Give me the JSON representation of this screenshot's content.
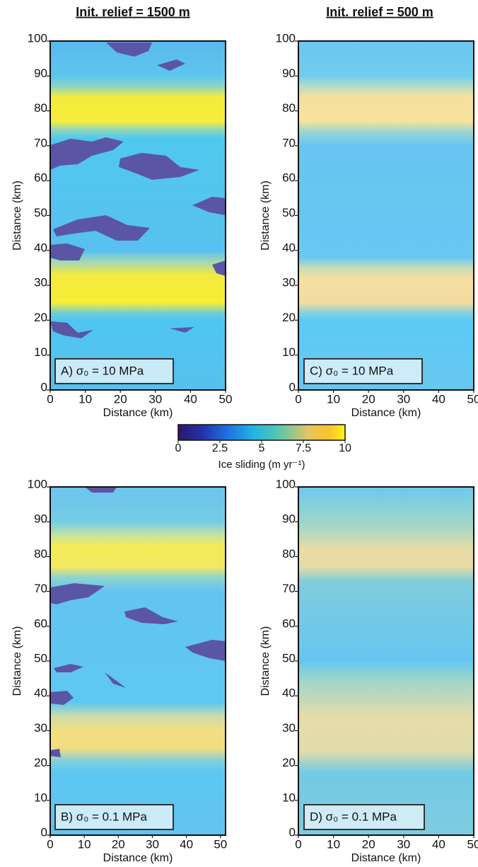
{
  "column_titles": [
    "Init. relief = 1500 m",
    "Init. relief = 500 m"
  ],
  "chart_data": [
    {
      "type": "heatmap",
      "label": "A) σ₀ = 10 MPa",
      "xlabel": "Distance (km)",
      "ylabel": "Distance (km)",
      "xlim": [
        0,
        50
      ],
      "ylim": [
        0,
        100
      ],
      "xticks": [
        0,
        10,
        20,
        30,
        40,
        50
      ],
      "yticks": [
        0,
        10,
        20,
        30,
        40,
        50,
        60,
        70,
        80,
        90,
        100
      ]
    },
    {
      "type": "heatmap",
      "label": "B) σ₀ = 0.1 MPa",
      "xlabel": "Distance (km)",
      "ylabel": "Distance (km)",
      "xlim": [
        0,
        51.5
      ],
      "ylim": [
        0,
        100
      ],
      "xticks": [
        0,
        10,
        20,
        30,
        40,
        50
      ],
      "yticks": [
        0,
        10,
        20,
        30,
        40,
        50,
        60,
        70,
        80,
        90,
        100
      ]
    },
    {
      "type": "heatmap",
      "label": "C) σ₀ = 10 MPa",
      "xlabel": "Distance (km)",
      "ylabel": "Distance (km)",
      "xlim": [
        0,
        50
      ],
      "ylim": [
        0,
        100
      ],
      "xticks": [
        0,
        10,
        20,
        30,
        40,
        50
      ],
      "yticks": [
        0,
        10,
        20,
        30,
        40,
        50,
        60,
        70,
        80,
        90,
        100
      ]
    },
    {
      "type": "heatmap",
      "label": "D) σ₀ = 0.1 MPa",
      "xlabel": "Distance (km)",
      "ylabel": "Distance (km)",
      "xlim": [
        0,
        50
      ],
      "ylim": [
        0,
        100
      ],
      "xticks": [
        0,
        10,
        20,
        30,
        40,
        50
      ],
      "yticks": [
        0,
        10,
        20,
        30,
        40,
        50,
        60,
        70,
        80,
        90,
        100
      ]
    }
  ],
  "colorbar": {
    "label": "Ice sliding (m yr⁻¹)",
    "lim": [
      0,
      10
    ],
    "ticks": [
      0,
      2.5,
      5,
      7.5,
      10
    ]
  }
}
